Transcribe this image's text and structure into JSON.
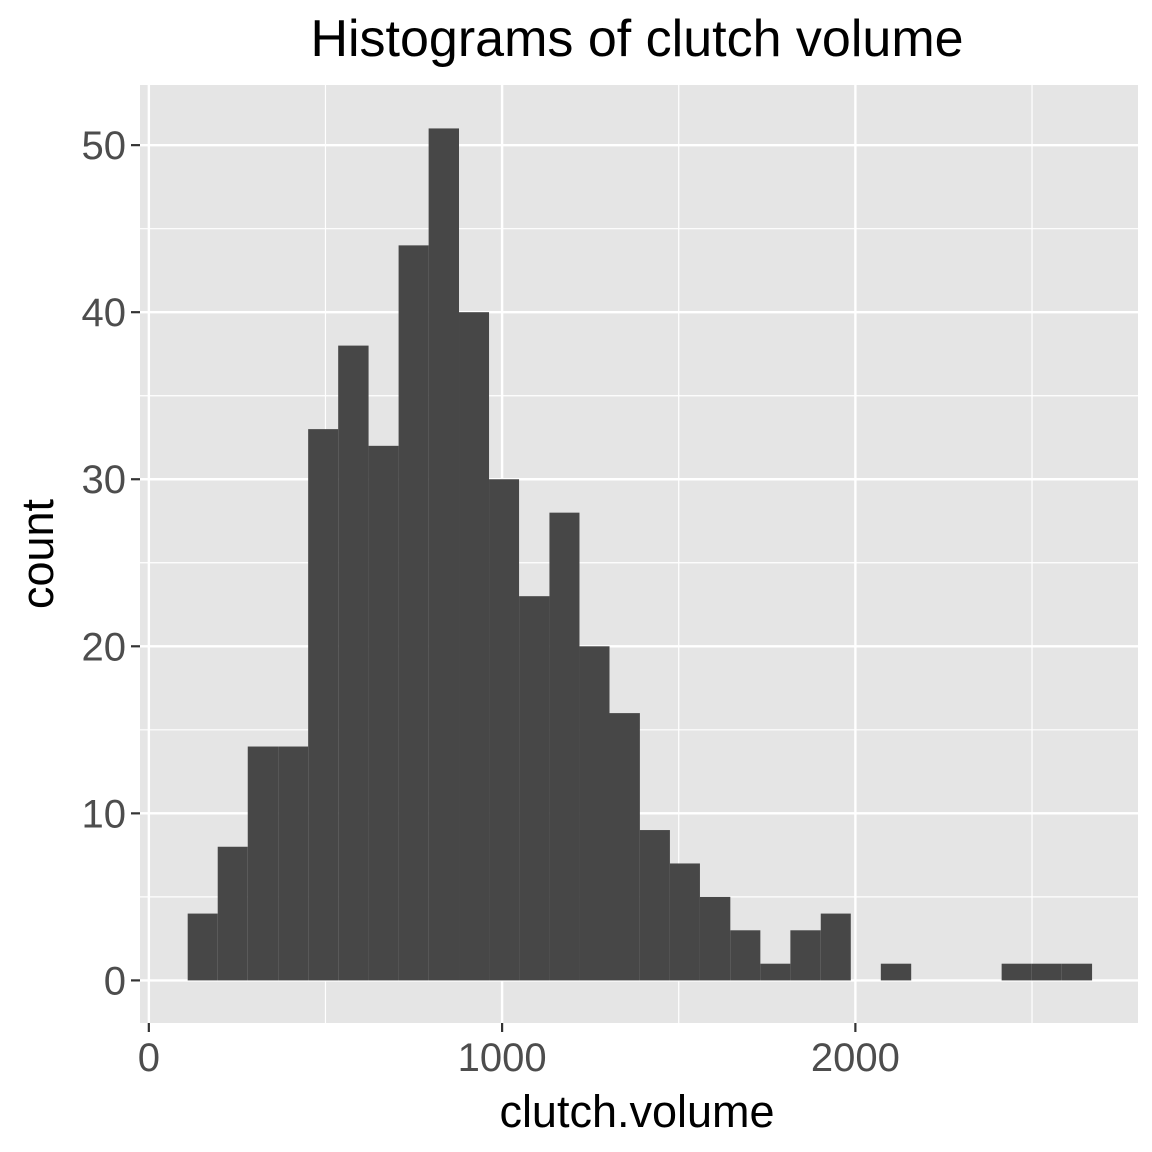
{
  "chart_data": {
    "type": "bar",
    "title": "Histograms of clutch volume",
    "xlabel": "clutch.volume",
    "ylabel": "count",
    "xlim": [
      -25,
      2800
    ],
    "ylim": [
      -2.55,
      53.6
    ],
    "x_ticks": [
      0,
      1000,
      2000
    ],
    "y_ticks": [
      0,
      10,
      20,
      30,
      40,
      50
    ],
    "grid": true,
    "panel_background": "#e5e5e5",
    "bar_color": "#474747",
    "bin_width": 85.3,
    "bins": [
      {
        "x0": 110,
        "x1": 195,
        "count": 4
      },
      {
        "x0": 195,
        "x1": 280,
        "count": 8
      },
      {
        "x0": 280,
        "x1": 366,
        "count": 14
      },
      {
        "x0": 366,
        "x1": 451,
        "count": 14
      },
      {
        "x0": 451,
        "x1": 536,
        "count": 33
      },
      {
        "x0": 536,
        "x1": 622,
        "count": 38
      },
      {
        "x0": 622,
        "x1": 707,
        "count": 32
      },
      {
        "x0": 707,
        "x1": 792,
        "count": 44
      },
      {
        "x0": 792,
        "x1": 878,
        "count": 51
      },
      {
        "x0": 878,
        "x1": 963,
        "count": 40
      },
      {
        "x0": 963,
        "x1": 1048,
        "count": 30
      },
      {
        "x0": 1048,
        "x1": 1134,
        "count": 23
      },
      {
        "x0": 1134,
        "x1": 1219,
        "count": 28
      },
      {
        "x0": 1219,
        "x1": 1304,
        "count": 20
      },
      {
        "x0": 1304,
        "x1": 1390,
        "count": 16
      },
      {
        "x0": 1390,
        "x1": 1475,
        "count": 9
      },
      {
        "x0": 1475,
        "x1": 1560,
        "count": 7
      },
      {
        "x0": 1560,
        "x1": 1646,
        "count": 5
      },
      {
        "x0": 1646,
        "x1": 1731,
        "count": 3
      },
      {
        "x0": 1731,
        "x1": 1816,
        "count": 1
      },
      {
        "x0": 1816,
        "x1": 1902,
        "count": 3
      },
      {
        "x0": 1902,
        "x1": 1987,
        "count": 4
      },
      {
        "x0": 1987,
        "x1": 2072,
        "count": 0
      },
      {
        "x0": 2072,
        "x1": 2158,
        "count": 1
      },
      {
        "x0": 2158,
        "x1": 2243,
        "count": 0
      },
      {
        "x0": 2243,
        "x1": 2328,
        "count": 0
      },
      {
        "x0": 2328,
        "x1": 2414,
        "count": 0
      },
      {
        "x0": 2414,
        "x1": 2499,
        "count": 1
      },
      {
        "x0": 2499,
        "x1": 2584,
        "count": 1
      },
      {
        "x0": 2584,
        "x1": 2670,
        "count": 1
      }
    ]
  }
}
